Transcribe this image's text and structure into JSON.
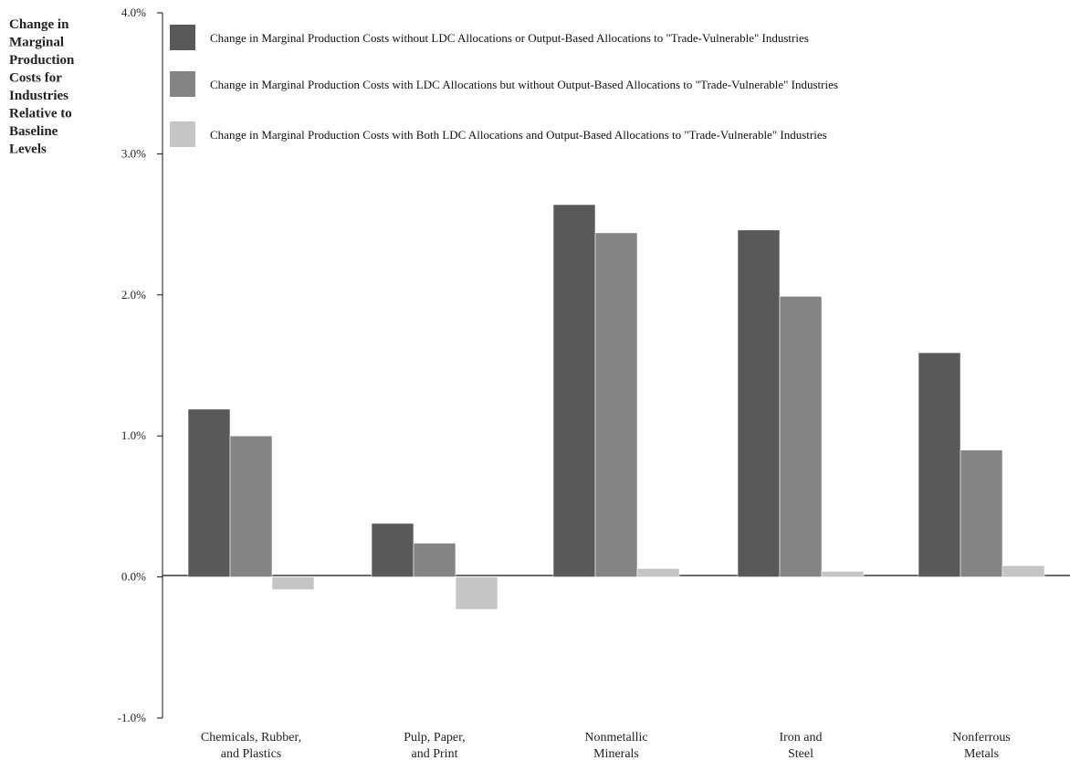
{
  "chart_data": {
    "type": "bar",
    "ylabel_lines": [
      "Change in",
      "Marginal",
      "Production",
      "Costs for",
      "Industries",
      "Relative to",
      "Baseline",
      "Levels"
    ],
    "yticks": [
      {
        "value": 4.0,
        "label": "4.0%"
      },
      {
        "value": 3.0,
        "label": "3.0%"
      },
      {
        "value": 2.0,
        "label": "2.0%"
      },
      {
        "value": 1.0,
        "label": "1.0%"
      },
      {
        "value": 0.0,
        "label": "0.0%"
      },
      {
        "value": -1.0,
        "label": "-1.0%"
      }
    ],
    "ylim": [
      -1.0,
      4.0
    ],
    "categories": [
      [
        "Chemicals, Rubber,",
        "and Plastics"
      ],
      [
        "Pulp, Paper,",
        "and Print"
      ],
      [
        "Nonmetallic",
        "Minerals"
      ],
      [
        "Iron and",
        "Steel"
      ],
      [
        "Nonferrous",
        "Metals"
      ]
    ],
    "series": [
      {
        "name": "Change in Marginal Production Costs without LDC Allocations or Output-Based Allocations to \"Trade-Vulnerable\" Industries",
        "color": "#595959",
        "values": [
          1.19,
          0.38,
          2.64,
          2.46,
          1.59
        ]
      },
      {
        "name": "Change in Marginal Production Costs with LDC Allocations but without Output-Based Allocations to \"Trade-Vulnerable\" Industries",
        "color": "#848484",
        "values": [
          1.0,
          0.24,
          2.44,
          1.99,
          0.9
        ]
      },
      {
        "name": "Change in Marginal Production Costs with Both LDC Allocations and Output-Based Allocations to \"Trade-Vulnerable\" Industries",
        "color": "#c5c5c5",
        "values": [
          -0.09,
          -0.23,
          0.06,
          0.04,
          0.08
        ]
      }
    ],
    "legend_position": "top",
    "grid": false
  }
}
